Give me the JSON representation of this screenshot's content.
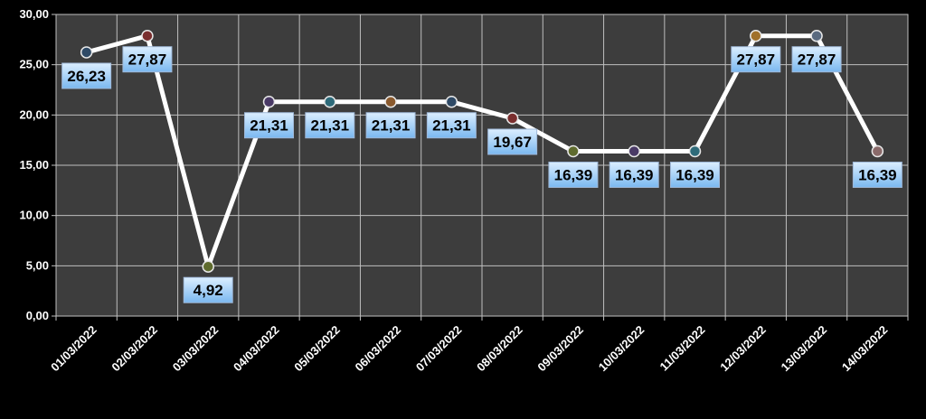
{
  "chart_data": {
    "type": "line",
    "categories": [
      "01/03/2022",
      "02/03/2022",
      "03/03/2022",
      "04/03/2022",
      "05/03/2022",
      "06/03/2022",
      "07/03/2022",
      "08/03/2022",
      "09/03/2022",
      "10/03/2022",
      "11/03/2022",
      "12/03/2022",
      "13/03/2022",
      "14/03/2022"
    ],
    "series": [
      {
        "values": [
          26.23,
          27.87,
          4.92,
          21.31,
          21.31,
          21.31,
          21.31,
          19.67,
          16.39,
          16.39,
          16.39,
          27.87,
          27.87,
          16.39
        ],
        "data_labels": [
          "26,23",
          "27,87",
          "4,92",
          "21,31",
          "21,31",
          "21,31",
          "21,31",
          "19,67",
          "16,39",
          "16,39",
          "16,39",
          "27,87",
          "27,87",
          "16,39"
        ],
        "marker_colors": [
          "#2f4a66",
          "#7a2e2e",
          "#5f6b2e",
          "#4a3a66",
          "#2e6b7a",
          "#8a5a2e",
          "#2f4a66",
          "#7a2e2e",
          "#5f6b2e",
          "#4a3a66",
          "#2e6b7a",
          "#a0702a",
          "#5a6a80",
          "#8a6a6a"
        ]
      }
    ],
    "y_ticks": [
      "0,00",
      "5,00",
      "10,00",
      "15,00",
      "20,00",
      "25,00",
      "30,00"
    ],
    "ylim": [
      0,
      30
    ],
    "grid": true,
    "legend": "none",
    "colors": {
      "background": "#000000",
      "plot_area": "#3d3d3d",
      "gridline": "#bfbfbf",
      "line": "#ffffff",
      "label_box_top": "#dbeeff",
      "label_box_bottom": "#7ab8f0"
    }
  }
}
